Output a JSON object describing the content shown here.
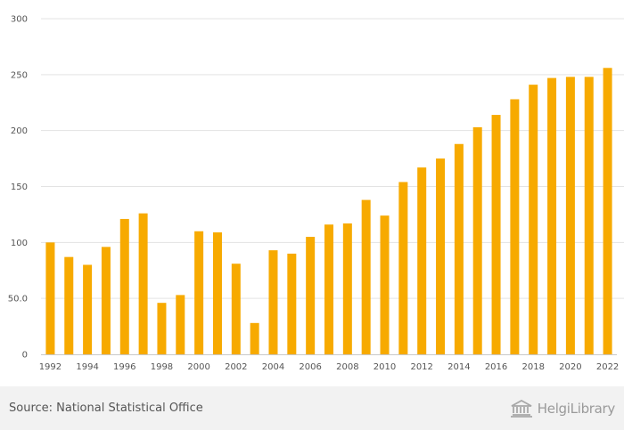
{
  "chart_data": {
    "type": "bar",
    "title": "",
    "xlabel": "",
    "ylabel": "",
    "categories": [
      "1992",
      "1993",
      "1994",
      "1995",
      "1996",
      "1997",
      "1998",
      "1999",
      "2000",
      "2001",
      "2002",
      "2003",
      "2004",
      "2005",
      "2006",
      "2007",
      "2008",
      "2009",
      "2010",
      "2011",
      "2012",
      "2013",
      "2014",
      "2015",
      "2016",
      "2017",
      "2018",
      "2019",
      "2020",
      "2021",
      "2022"
    ],
    "x_tick_labels": [
      "1992",
      "1994",
      "1996",
      "1998",
      "2000",
      "2002",
      "2004",
      "2006",
      "2008",
      "2010",
      "2012",
      "2014",
      "2016",
      "2018",
      "2020",
      "2022"
    ],
    "values": [
      100,
      87,
      80,
      96,
      121,
      126,
      46,
      53,
      110,
      109,
      81,
      28,
      93,
      90,
      105,
      116,
      117,
      138,
      124,
      154,
      167,
      175,
      188,
      203,
      214,
      228,
      241,
      247,
      248,
      248,
      256
    ],
    "ylim": [
      0,
      300
    ],
    "y_ticks": [
      0,
      50,
      100,
      150,
      200,
      250,
      300
    ],
    "y_tick_labels": [
      "0",
      "50.0",
      "100",
      "150",
      "200",
      "250",
      "300"
    ],
    "grid": true,
    "bar_color": "#f7aa00"
  },
  "footer": {
    "source": "Source: National Statistical Office",
    "logo_text": "HelgiLibrary"
  }
}
